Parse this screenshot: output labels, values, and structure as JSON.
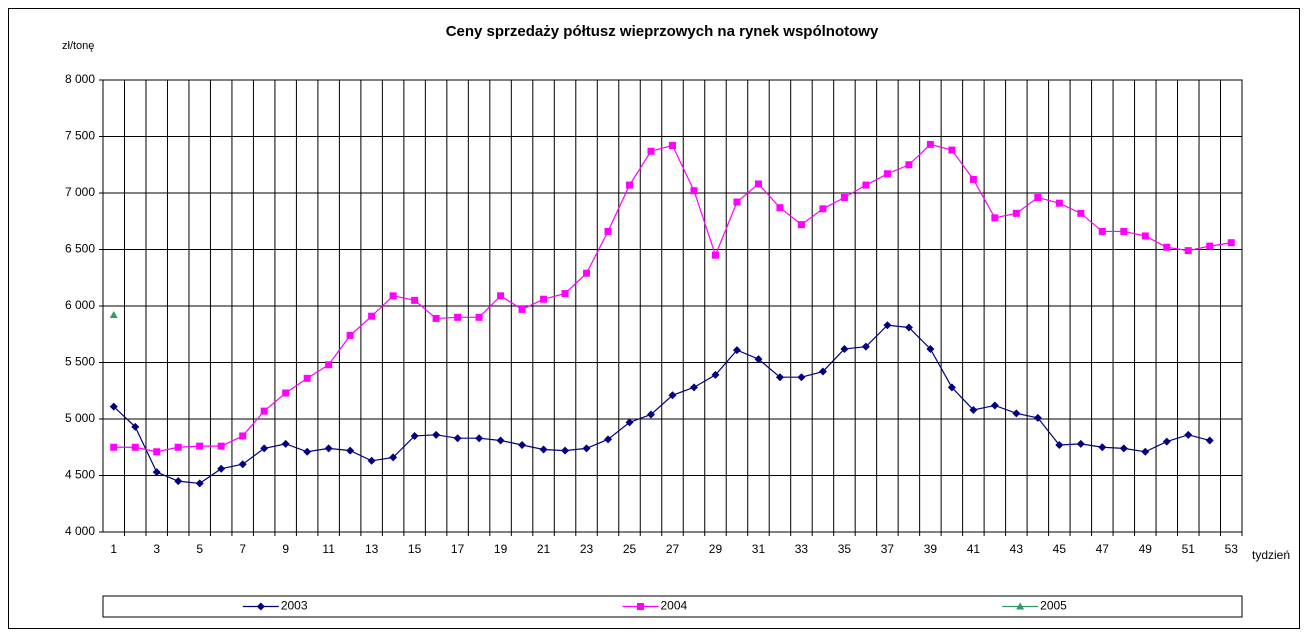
{
  "chart_data": {
    "type": "line",
    "title": "Ceny sprzedaży półtusz wieprzowych na rynek wspólnotowy",
    "y_label": "zł/tonę",
    "x_label": "tydzień",
    "categories": [
      1,
      null,
      3,
      null,
      5,
      null,
      7,
      null,
      9,
      null,
      11,
      null,
      13,
      null,
      15,
      null,
      17,
      null,
      19,
      null,
      21,
      null,
      23,
      null,
      25,
      null,
      27,
      null,
      29,
      null,
      31,
      null,
      33,
      null,
      35,
      null,
      37,
      null,
      39,
      null,
      41,
      null,
      43,
      null,
      45,
      null,
      47,
      null,
      49,
      null,
      51,
      null,
      53
    ],
    "series": [
      {
        "name": "2003",
        "color": "#000080",
        "marker": "diamond",
        "values": [
          5110,
          4930,
          4530,
          4450,
          4430,
          4560,
          4600,
          4740,
          4780,
          4710,
          4740,
          4720,
          4630,
          4660,
          4850,
          4860,
          4830,
          4830,
          4810,
          4770,
          4730,
          4720,
          4740,
          4820,
          4970,
          5040,
          5210,
          5280,
          5390,
          5610,
          5530,
          5370,
          5370,
          5420,
          5620,
          5640,
          5830,
          5810,
          5620,
          5280,
          5080,
          5120,
          5050,
          5010,
          4770,
          4780,
          4750,
          4740,
          4710,
          4800,
          4860,
          4810,
          null
        ]
      },
      {
        "name": "2004",
        "color": "#ff00ff",
        "marker": "square",
        "values": [
          4750,
          4750,
          4710,
          4750,
          4760,
          4760,
          4850,
          5070,
          5230,
          5360,
          5480,
          5740,
          5910,
          6090,
          6050,
          5890,
          5900,
          5900,
          6090,
          5970,
          6060,
          6110,
          6290,
          6660,
          7070,
          7370,
          7420,
          7020,
          6450,
          6920,
          7080,
          6870,
          6720,
          6860,
          6960,
          7070,
          7170,
          7250,
          7430,
          7380,
          7120,
          6780,
          6820,
          6960,
          6910,
          6820,
          6660,
          6660,
          6620,
          6520,
          6490,
          6530,
          6560
        ]
      },
      {
        "name": "2005",
        "color": "#339966",
        "marker": "triangle",
        "values": [
          5920,
          null,
          null,
          null,
          null,
          null,
          null,
          null,
          null,
          null,
          null,
          null,
          null,
          null,
          null,
          null,
          null,
          null,
          null,
          null,
          null,
          null,
          null,
          null,
          null,
          null,
          null,
          null,
          null,
          null,
          null,
          null,
          null,
          null,
          null,
          null,
          null,
          null,
          null,
          null,
          null,
          null,
          null,
          null,
          null,
          null,
          null,
          null,
          null,
          null,
          null,
          null,
          null
        ]
      }
    ],
    "ylim": [
      4000,
      8000
    ],
    "yticks": [
      {
        "value": 4000,
        "label": "4 000"
      },
      {
        "value": 4500,
        "label": "4 500"
      },
      {
        "value": 5000,
        "label": "5 000"
      },
      {
        "value": 5500,
        "label": "5 500"
      },
      {
        "value": 6000,
        "label": "6 000"
      },
      {
        "value": 6500,
        "label": "6 500"
      },
      {
        "value": 7000,
        "label": "7 000"
      },
      {
        "value": 7500,
        "label": "7 500"
      },
      {
        "value": 8000,
        "label": "8 000"
      }
    ],
    "grid": true,
    "legend": "bottom"
  }
}
